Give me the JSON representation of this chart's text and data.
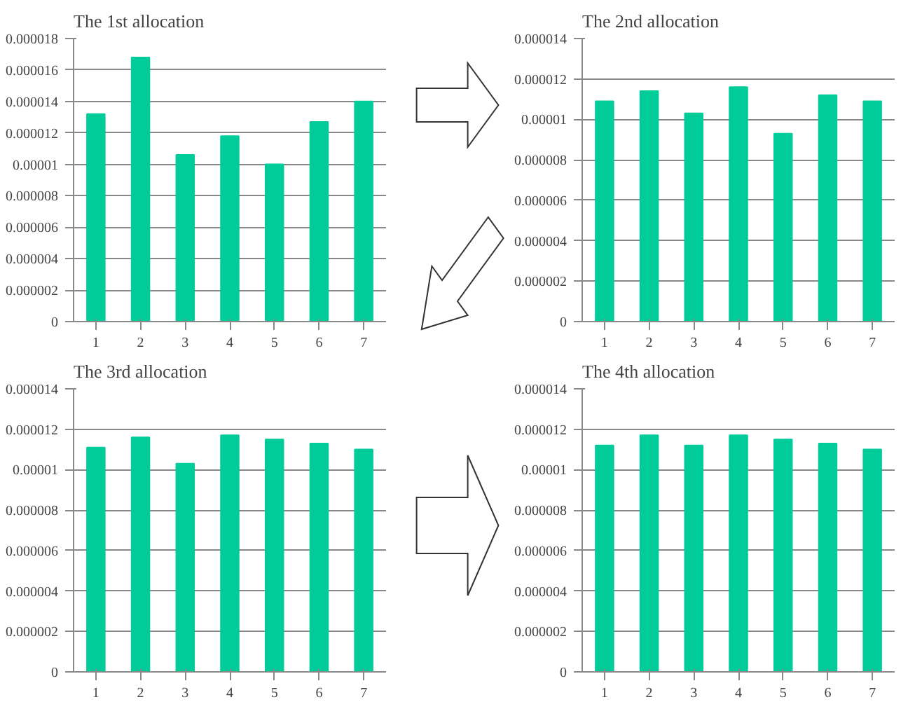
{
  "chart_data": [
    {
      "type": "bar",
      "title": "The 1st allocation",
      "categories": [
        "1",
        "2",
        "3",
        "4",
        "5",
        "6",
        "7"
      ],
      "values": [
        1.32e-05,
        1.68e-05,
        1.06e-05,
        1.18e-05,
        1e-05,
        1.27e-05,
        1.4e-05
      ],
      "color": "#00cc99",
      "ylim": [
        0,
        1.8e-05
      ],
      "yticks": [
        {
          "value": 0,
          "label": "0"
        },
        {
          "value": 2e-06,
          "label": "0.000002"
        },
        {
          "value": 4e-06,
          "label": "0.000004"
        },
        {
          "value": 6e-06,
          "label": "0.000006"
        },
        {
          "value": 8e-06,
          "label": "0.000008"
        },
        {
          "value": 1e-05,
          "label": "0.00001"
        },
        {
          "value": 1.2e-05,
          "label": "0.000012"
        },
        {
          "value": 1.4e-05,
          "label": "0.000014"
        },
        {
          "value": 1.6e-05,
          "label": "0.000016"
        },
        {
          "value": 1.8e-05,
          "label": "0.000018"
        }
      ],
      "grid": "y"
    },
    {
      "type": "bar",
      "title": "The 2nd allocation",
      "categories": [
        "1",
        "2",
        "3",
        "4",
        "5",
        "6",
        "7"
      ],
      "values": [
        1.09e-05,
        1.14e-05,
        1.03e-05,
        1.16e-05,
        9.3e-06,
        1.12e-05,
        1.09e-05
      ],
      "color": "#00cc99",
      "ylim": [
        0,
        1.4e-05
      ],
      "yticks": [
        {
          "value": 0,
          "label": "0"
        },
        {
          "value": 2e-06,
          "label": "0.000002"
        },
        {
          "value": 4e-06,
          "label": "0.000004"
        },
        {
          "value": 6e-06,
          "label": "0.000006"
        },
        {
          "value": 8e-06,
          "label": "0.000008"
        },
        {
          "value": 1e-05,
          "label": "0.00001"
        },
        {
          "value": 1.2e-05,
          "label": "0.000012"
        },
        {
          "value": 1.4e-05,
          "label": "0.000014"
        }
      ],
      "grid": "y"
    },
    {
      "type": "bar",
      "title": "The 3rd allocation",
      "categories": [
        "1",
        "2",
        "3",
        "4",
        "5",
        "6",
        "7"
      ],
      "values": [
        1.11e-05,
        1.16e-05,
        1.03e-05,
        1.17e-05,
        1.15e-05,
        1.13e-05,
        1.1e-05
      ],
      "color": "#00cc99",
      "ylim": [
        0,
        1.4e-05
      ],
      "yticks": [
        {
          "value": 0,
          "label": "0"
        },
        {
          "value": 2e-06,
          "label": "0.000002"
        },
        {
          "value": 4e-06,
          "label": "0.000004"
        },
        {
          "value": 6e-06,
          "label": "0.000006"
        },
        {
          "value": 8e-06,
          "label": "0.000008"
        },
        {
          "value": 1e-05,
          "label": "0.00001"
        },
        {
          "value": 1.2e-05,
          "label": "0.000012"
        },
        {
          "value": 1.4e-05,
          "label": "0.000014"
        }
      ],
      "grid": "y"
    },
    {
      "type": "bar",
      "title": "The 4th allocation",
      "categories": [
        "1",
        "2",
        "3",
        "4",
        "5",
        "6",
        "7"
      ],
      "values": [
        1.12e-05,
        1.17e-05,
        1.12e-05,
        1.17e-05,
        1.15e-05,
        1.13e-05,
        1.1e-05
      ],
      "color": "#00cc99",
      "ylim": [
        0,
        1.4e-05
      ],
      "yticks": [
        {
          "value": 0,
          "label": "0"
        },
        {
          "value": 2e-06,
          "label": "0.000002"
        },
        {
          "value": 4e-06,
          "label": "0.000004"
        },
        {
          "value": 6e-06,
          "label": "0.000006"
        },
        {
          "value": 8e-06,
          "label": "0.000008"
        },
        {
          "value": 1e-05,
          "label": "0.00001"
        },
        {
          "value": 1.2e-05,
          "label": "0.000012"
        },
        {
          "value": 1.4e-05,
          "label": "0.000014"
        }
      ],
      "grid": "y"
    }
  ]
}
